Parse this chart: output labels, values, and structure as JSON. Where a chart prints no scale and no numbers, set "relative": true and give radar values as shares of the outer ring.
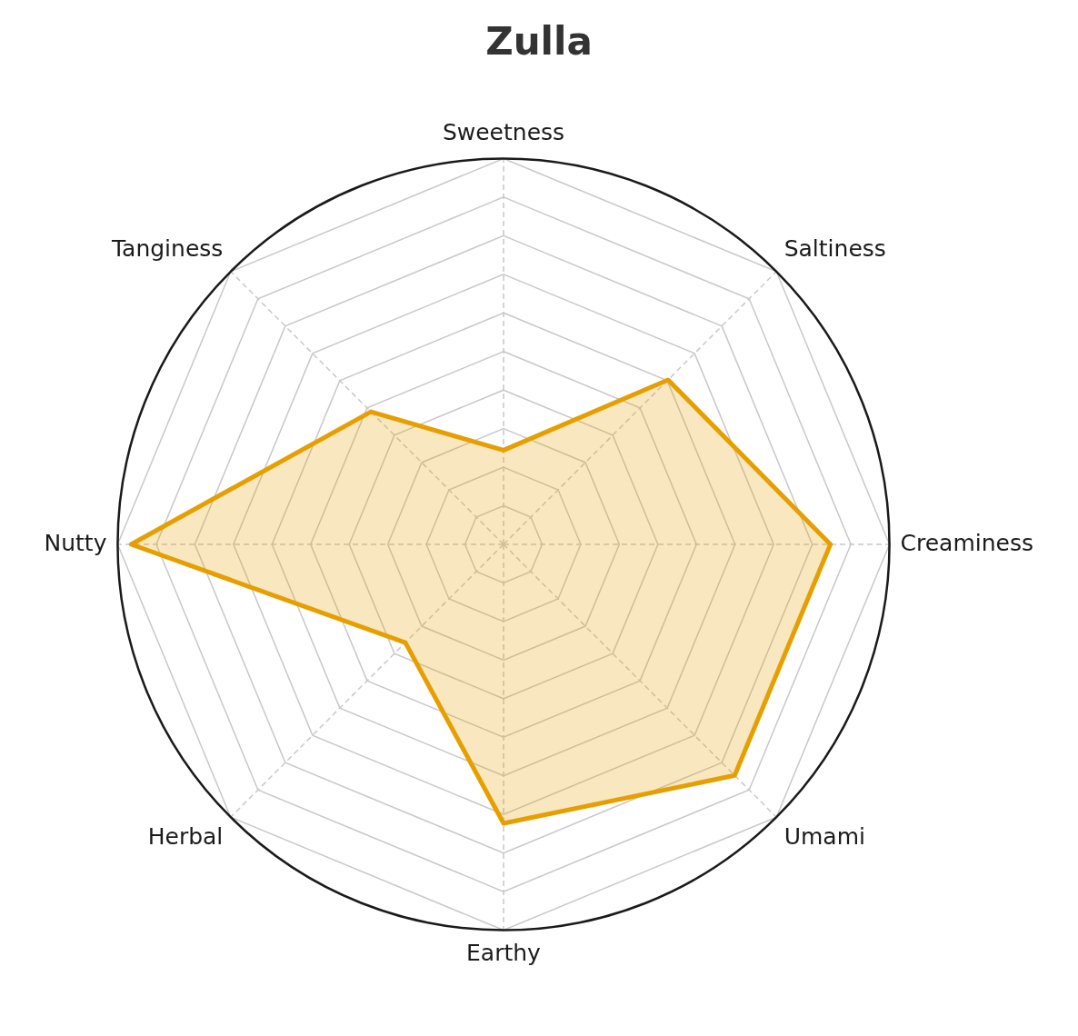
{
  "chart_data": {
    "type": "radar",
    "title": "Zulla",
    "relative": true,
    "categories": [
      "Sweetness",
      "Saltiness",
      "Creaminess",
      "Umami",
      "Earthy",
      "Herbal",
      "Nutty",
      "Tanginess"
    ],
    "series": [
      {
        "color": "#e69f00",
        "values": [
          0.244,
          0.603,
          0.847,
          0.847,
          0.723,
          0.36,
          0.965,
          0.486
        ]
      }
    ],
    "grid": true,
    "legend": false,
    "marker": "none",
    "line_style": "solid"
  }
}
